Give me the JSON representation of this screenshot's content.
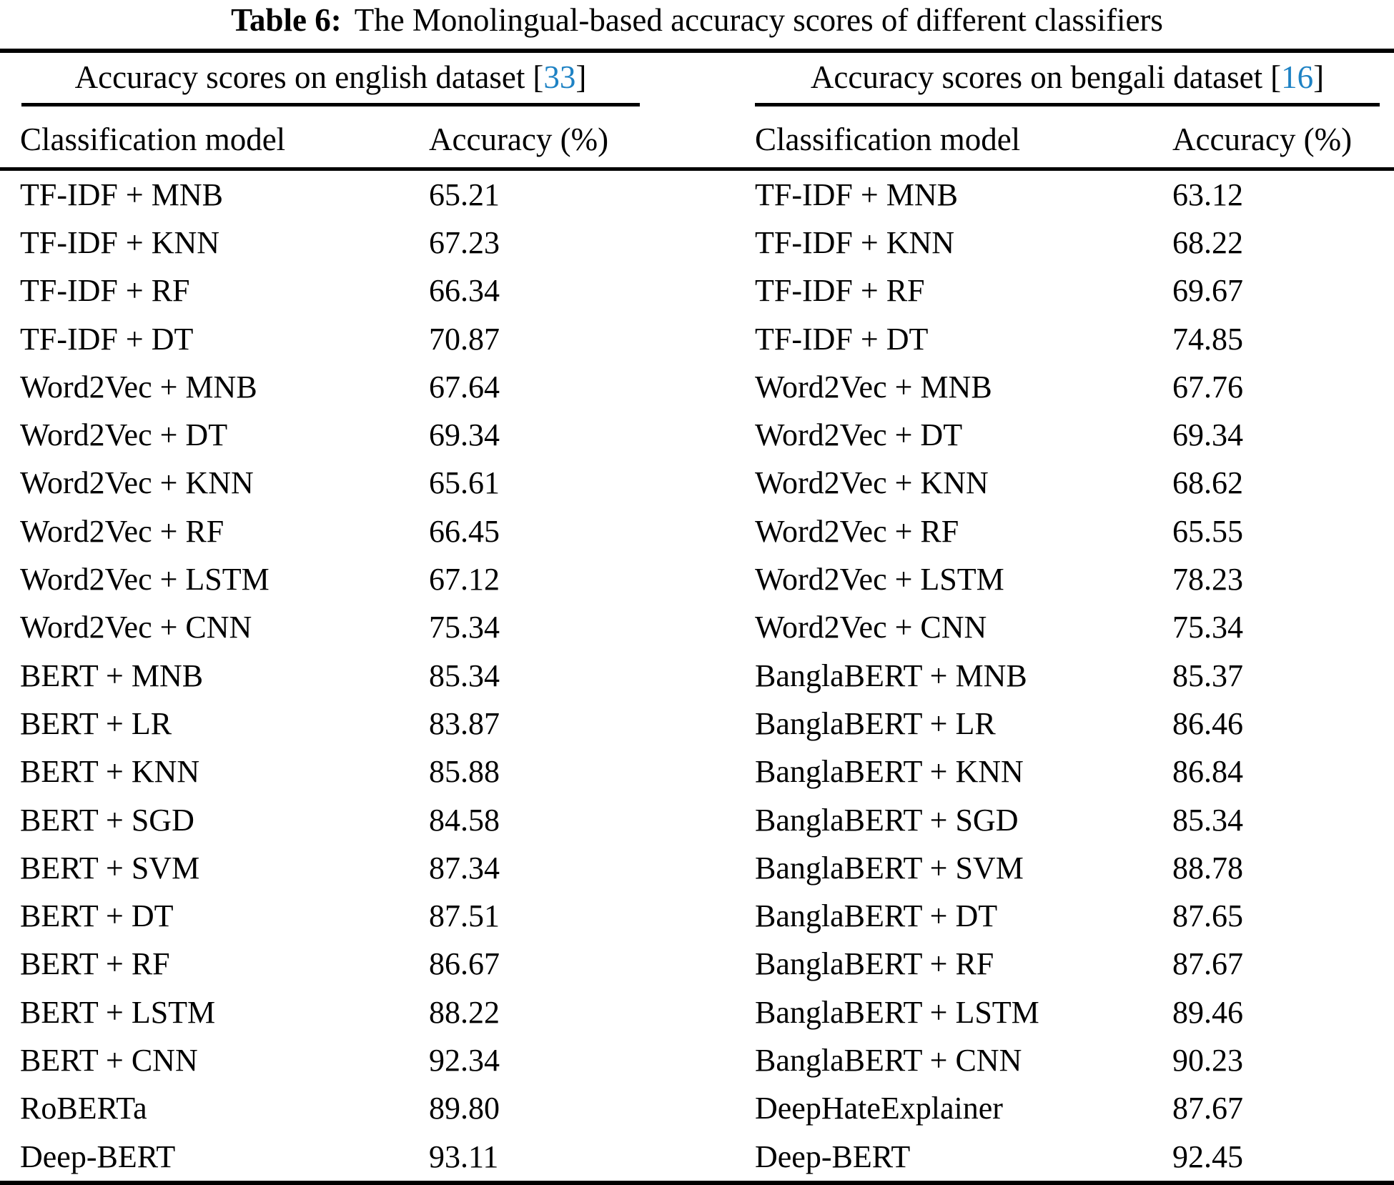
{
  "caption": {
    "label": "Table 6:",
    "text": "The Monolingual-based accuracy scores of different classifiers"
  },
  "accent_color": "#1e82c4",
  "tables": [
    {
      "group_header": {
        "text": "Accuracy scores on english dataset",
        "bracket_open": "[",
        "citation": "33",
        "bracket_close": "]"
      },
      "columns": {
        "model": "Classification model",
        "accuracy": "Accuracy (%)"
      },
      "rows": [
        {
          "model": "TF-IDF + MNB",
          "accuracy": "65.21"
        },
        {
          "model": "TF-IDF + KNN",
          "accuracy": "67.23"
        },
        {
          "model": "TF-IDF + RF",
          "accuracy": "66.34"
        },
        {
          "model": "TF-IDF + DT",
          "accuracy": "70.87"
        },
        {
          "model": "Word2Vec + MNB",
          "accuracy": "67.64"
        },
        {
          "model": "Word2Vec + DT",
          "accuracy": "69.34"
        },
        {
          "model": "Word2Vec + KNN",
          "accuracy": "65.61"
        },
        {
          "model": "Word2Vec + RF",
          "accuracy": "66.45"
        },
        {
          "model": "Word2Vec + LSTM",
          "accuracy": "67.12"
        },
        {
          "model": "Word2Vec + CNN",
          "accuracy": "75.34"
        },
        {
          "model": "BERT + MNB",
          "accuracy": "85.34"
        },
        {
          "model": "BERT + LR",
          "accuracy": "83.87"
        },
        {
          "model": "BERT + KNN",
          "accuracy": "85.88"
        },
        {
          "model": "BERT + SGD",
          "accuracy": "84.58"
        },
        {
          "model": "BERT + SVM",
          "accuracy": "87.34"
        },
        {
          "model": "BERT + DT",
          "accuracy": "87.51"
        },
        {
          "model": "BERT + RF",
          "accuracy": "86.67"
        },
        {
          "model": "BERT + LSTM",
          "accuracy": "88.22"
        },
        {
          "model": "BERT + CNN",
          "accuracy": "92.34"
        },
        {
          "model": "RoBERTa",
          "accuracy": "89.80"
        },
        {
          "model": "Deep-BERT",
          "accuracy": "93.11"
        }
      ]
    },
    {
      "group_header": {
        "text": "Accuracy scores on bengali dataset",
        "bracket_open": "[",
        "citation": "16",
        "bracket_close": "]"
      },
      "columns": {
        "model": "Classification model",
        "accuracy": "Accuracy (%)"
      },
      "rows": [
        {
          "model": "TF-IDF + MNB",
          "accuracy": "63.12"
        },
        {
          "model": "TF-IDF + KNN",
          "accuracy": "68.22"
        },
        {
          "model": "TF-IDF + RF",
          "accuracy": "69.67"
        },
        {
          "model": "TF-IDF + DT",
          "accuracy": "74.85"
        },
        {
          "model": "Word2Vec + MNB",
          "accuracy": "67.76"
        },
        {
          "model": "Word2Vec + DT",
          "accuracy": "69.34"
        },
        {
          "model": "Word2Vec + KNN",
          "accuracy": "68.62"
        },
        {
          "model": "Word2Vec + RF",
          "accuracy": "65.55"
        },
        {
          "model": "Word2Vec + LSTM",
          "accuracy": "78.23"
        },
        {
          "model": "Word2Vec + CNN",
          "accuracy": "75.34"
        },
        {
          "model": "BanglaBERT + MNB",
          "accuracy": "85.37"
        },
        {
          "model": "BanglaBERT + LR",
          "accuracy": "86.46"
        },
        {
          "model": "BanglaBERT + KNN",
          "accuracy": "86.84"
        },
        {
          "model": "BanglaBERT + SGD",
          "accuracy": "85.34"
        },
        {
          "model": "BanglaBERT + SVM",
          "accuracy": "88.78"
        },
        {
          "model": "BanglaBERT + DT",
          "accuracy": "87.65"
        },
        {
          "model": "BanglaBERT + RF",
          "accuracy": "87.67"
        },
        {
          "model": "BanglaBERT + LSTM",
          "accuracy": "89.46"
        },
        {
          "model": "BanglaBERT + CNN",
          "accuracy": "90.23"
        },
        {
          "model": "DeepHateExplainer",
          "accuracy": "87.67"
        },
        {
          "model": "Deep-BERT",
          "accuracy": "92.45"
        }
      ]
    }
  ]
}
